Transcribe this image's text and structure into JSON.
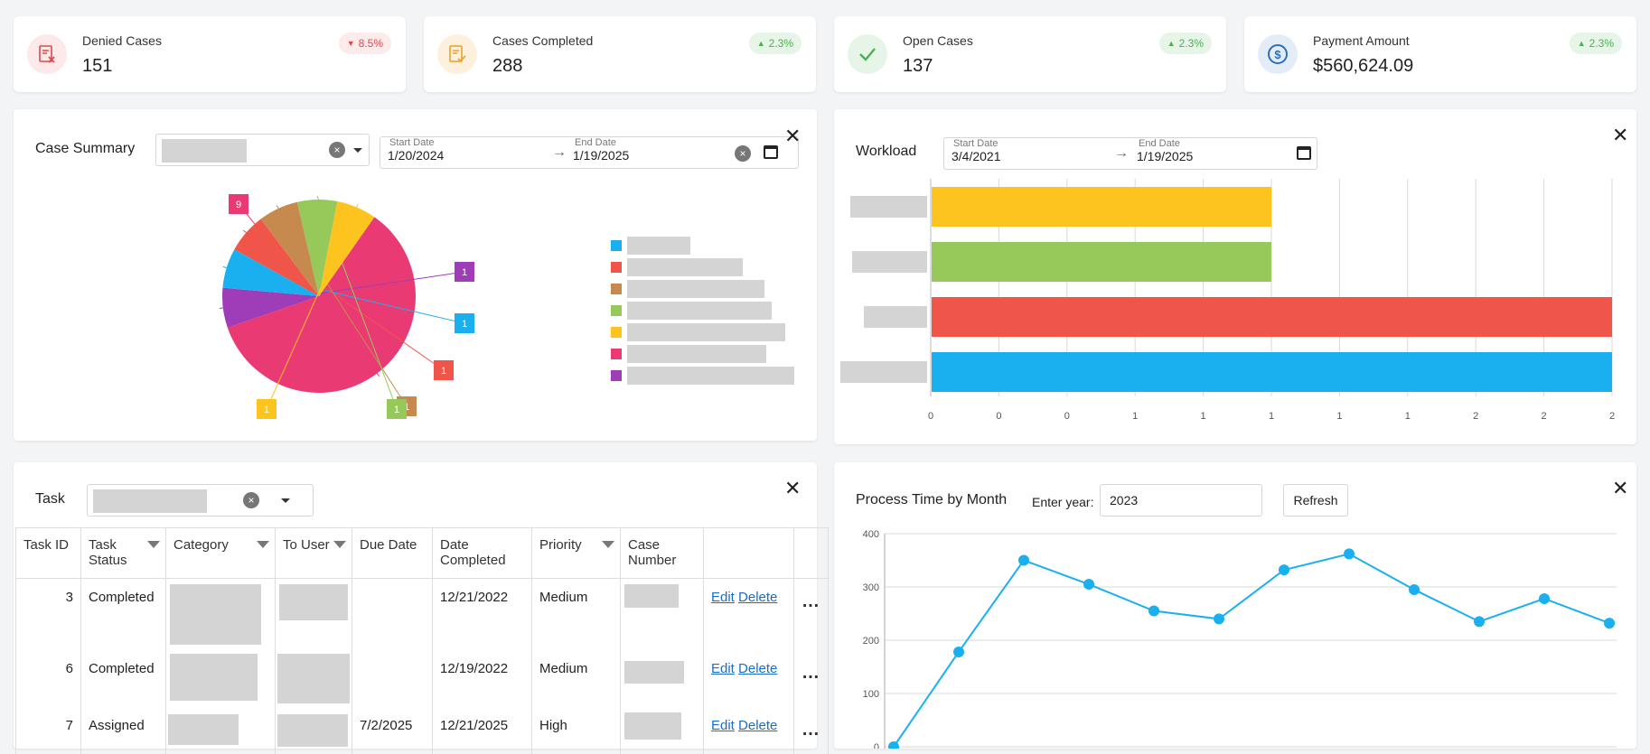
{
  "kpis": [
    {
      "label": "Denied Cases",
      "value": "151",
      "change": "8.5%",
      "direction": "down",
      "icon": "denied-doc-icon",
      "color": "#e04848",
      "bg": "#fde9e9"
    },
    {
      "label": "Cases Completed",
      "value": "288",
      "change": "2.3%",
      "direction": "up",
      "icon": "completed-doc-icon",
      "color": "#f0a020",
      "bg": "#fdf1de"
    },
    {
      "label": "Open Cases",
      "value": "137",
      "change": "2.3%",
      "direction": "up",
      "icon": "check-icon",
      "color": "#4caf50",
      "bg": "#e6f5e8"
    },
    {
      "label": "Payment Amount",
      "value": "$560,624.09",
      "change": "2.3%",
      "direction": "up",
      "icon": "dollar-icon",
      "color": "#2d6fb8",
      "bg": "#e4edf7"
    }
  ],
  "case_summary": {
    "title": "Case Summary",
    "start_label": "Start Date",
    "start_value": "1/20/2024",
    "end_label": "End Date",
    "end_value": "1/19/2025",
    "arrow": "→",
    "clear": "×",
    "close": "✕",
    "slice_labels": [
      "9",
      "1",
      "1",
      "1",
      "1",
      "1",
      "1"
    ],
    "legend_colors": [
      "#1ab0f0",
      "#f0554a",
      "#c68a4f",
      "#96c95a",
      "#fdc420",
      "#ea3a74",
      "#9f3cb8"
    ]
  },
  "workload": {
    "title": "Workload",
    "start_label": "Start Date",
    "start_value": "3/4/2021",
    "end_label": "End Date",
    "end_value": "1/19/2025",
    "arrow": "→",
    "close": "✕",
    "ticks": [
      "0",
      "0",
      "0",
      "1",
      "1",
      "1",
      "1",
      "1",
      "2",
      "2",
      "2"
    ]
  },
  "task": {
    "title": "Task",
    "clear": "×",
    "close": "✕",
    "headers": [
      "Task ID",
      "Task Status",
      "Category",
      "To User",
      "Due Date",
      "Date Completed",
      "Priority",
      "Case Number",
      "",
      ""
    ],
    "rows": [
      {
        "id": "3",
        "status": "Completed",
        "due": "",
        "completed": "12/21/2022",
        "priority": "Medium",
        "edit": "Edit",
        "delete": "Delete",
        "more": "…"
      },
      {
        "id": "6",
        "status": "Completed",
        "due": "",
        "completed": "12/19/2022",
        "priority": "Medium",
        "edit": "Edit",
        "delete": "Delete",
        "more": "…"
      },
      {
        "id": "7",
        "status": "Assigned",
        "due": "7/2/2025",
        "completed": "12/21/2025",
        "priority": "High",
        "edit": "Edit",
        "delete": "Delete",
        "more": "…"
      }
    ]
  },
  "process_time": {
    "title": "Process Time by Month",
    "year_label": "Enter year:",
    "year_value": "2023",
    "refresh": "Refresh",
    "close": "✕"
  },
  "chart_data": [
    {
      "type": "pie",
      "title": "Case Summary",
      "values": [
        9,
        1,
        1,
        1,
        1,
        1,
        1
      ],
      "colors": [
        "#ea3a74",
        "#9f3cb8",
        "#1ab0f0",
        "#f0554a",
        "#c68a4f",
        "#96c95a",
        "#fdc420"
      ],
      "legend": "right"
    },
    {
      "type": "bar",
      "title": "Workload",
      "orientation": "horizontal",
      "values": [
        1,
        1,
        2,
        2
      ],
      "colors": [
        "#fdc420",
        "#96c95a",
        "#f0554a",
        "#1ab0f0"
      ],
      "xlim": [
        0,
        2
      ],
      "grid": true
    },
    {
      "type": "line",
      "title": "Process Time by Month",
      "x": [
        1,
        2,
        3,
        4,
        5,
        6,
        7,
        8,
        9,
        10,
        11,
        12
      ],
      "values": [
        0,
        178,
        350,
        305,
        255,
        240,
        332,
        362,
        295,
        235,
        278,
        232
      ],
      "ylim": [
        0,
        400
      ],
      "yticks": [
        "0",
        "100",
        "200",
        "300",
        "400"
      ],
      "color": "#1ab0f0",
      "grid": true
    }
  ]
}
